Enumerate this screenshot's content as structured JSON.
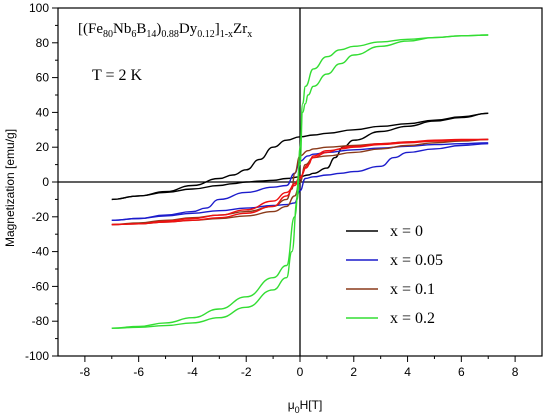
{
  "chart_data": {
    "type": "line",
    "title": "",
    "xlabel": {
      "main": "μ",
      "sub": "0",
      "rest": "H[T]"
    },
    "ylabel": "Magnetization [emu/g]",
    "xlim": [
      -9,
      9
    ],
    "ylim": [
      -100,
      100
    ],
    "xticks": [
      -8,
      -6,
      -4,
      -2,
      0,
      2,
      4,
      6,
      8
    ],
    "yticks": [
      -100,
      -80,
      -60,
      -40,
      -20,
      0,
      20,
      40,
      60,
      80,
      100
    ],
    "grid": false,
    "legend_position": "bottom-right",
    "annotation_formula": [
      {
        "t": "[(Fe",
        "s": "n"
      },
      {
        "t": "80",
        "s": "sub"
      },
      {
        "t": "Nb",
        "s": "n"
      },
      {
        "t": "6",
        "s": "sub"
      },
      {
        "t": "B",
        "s": "n"
      },
      {
        "t": "14",
        "s": "sub"
      },
      {
        "t": ")",
        "s": "n"
      },
      {
        "t": "0.88",
        "s": "sub"
      },
      {
        "t": "Dy",
        "s": "n"
      },
      {
        "t": "0.12",
        "s": "sub"
      },
      {
        "t": "]",
        "s": "n"
      },
      {
        "t": "1-x",
        "s": "sub"
      },
      {
        "t": "Zr",
        "s": "n"
      },
      {
        "t": "x",
        "s": "sub"
      }
    ],
    "annotation_temperature": "T = 2 K",
    "series": [
      {
        "name": "x = 0",
        "color": "#000000",
        "upper": [
          [
            -7,
            -10
          ],
          [
            -6,
            -8
          ],
          [
            -5,
            -6
          ],
          [
            -4,
            -4
          ],
          [
            -3,
            -2
          ],
          [
            -2.5,
            -1
          ],
          [
            -2,
            0
          ],
          [
            -1.5,
            0.5
          ],
          [
            -1,
            1
          ],
          [
            -0.5,
            2
          ],
          [
            0,
            3
          ],
          [
            0.3,
            4
          ],
          [
            0.5,
            5
          ],
          [
            1,
            8
          ],
          [
            1.3,
            14
          ],
          [
            1.6,
            20
          ],
          [
            2,
            24
          ],
          [
            3,
            29
          ],
          [
            4,
            32
          ],
          [
            5,
            35
          ],
          [
            6,
            37
          ],
          [
            7,
            39.5
          ]
        ],
        "lower": [
          [
            -7,
            -10
          ],
          [
            -6,
            -8
          ],
          [
            -5,
            -5.5
          ],
          [
            -4,
            -2
          ],
          [
            -3,
            2
          ],
          [
            -2.5,
            4
          ],
          [
            -2,
            7
          ],
          [
            -1.5,
            13
          ],
          [
            -1,
            20
          ],
          [
            -0.5,
            24
          ],
          [
            0,
            26
          ],
          [
            0.5,
            27
          ],
          [
            1,
            28
          ],
          [
            2,
            30
          ],
          [
            3,
            32
          ],
          [
            4,
            33.5
          ],
          [
            5,
            35.5
          ],
          [
            6,
            37.5
          ],
          [
            7,
            39.5
          ]
        ]
      },
      {
        "name": "x = 0.05",
        "color": "#1c1ccc",
        "upper": [
          [
            -7,
            -22
          ],
          [
            -6,
            -21
          ],
          [
            -5,
            -19.5
          ],
          [
            -4,
            -18
          ],
          [
            -3,
            -16.5
          ],
          [
            -2,
            -15
          ],
          [
            -1,
            -13.5
          ],
          [
            -0.5,
            -13
          ],
          [
            -0.2,
            -12
          ],
          [
            0,
            -5
          ],
          [
            0.2,
            2
          ],
          [
            0.5,
            3
          ],
          [
            1,
            4
          ],
          [
            1.5,
            5
          ],
          [
            2,
            6
          ],
          [
            3,
            9
          ],
          [
            3.5,
            14
          ],
          [
            4,
            17
          ],
          [
            5,
            19
          ],
          [
            6,
            21
          ],
          [
            7,
            22
          ]
        ],
        "lower": [
          [
            -7,
            -22
          ],
          [
            -6,
            -21
          ],
          [
            -5,
            -19
          ],
          [
            -4,
            -17
          ],
          [
            -3.5,
            -15
          ],
          [
            -3,
            -10
          ],
          [
            -2,
            -6
          ],
          [
            -1,
            -3
          ],
          [
            -0.5,
            -2
          ],
          [
            -0.2,
            5
          ],
          [
            0,
            12
          ],
          [
            0.3,
            15
          ],
          [
            0.5,
            16
          ],
          [
            1,
            17
          ],
          [
            2,
            18.5
          ],
          [
            3,
            19.5
          ],
          [
            4,
            20.5
          ],
          [
            5,
            21.5
          ],
          [
            6,
            22
          ],
          [
            7,
            22.5
          ]
        ]
      },
      {
        "name": "x = 0.1",
        "color": "#8a3a1a",
        "upper": [
          [
            -7,
            -24.5
          ],
          [
            -6,
            -24
          ],
          [
            -5,
            -23
          ],
          [
            -4,
            -22
          ],
          [
            -3,
            -21
          ],
          [
            -2,
            -19.5
          ],
          [
            -1,
            -17
          ],
          [
            -0.5,
            -14
          ],
          [
            -0.2,
            -8
          ],
          [
            0,
            0
          ],
          [
            0.2,
            10
          ],
          [
            0.5,
            14
          ],
          [
            1,
            15
          ],
          [
            2,
            17
          ],
          [
            3,
            19
          ],
          [
            4,
            21
          ],
          [
            5,
            22.5
          ],
          [
            6,
            23.5
          ],
          [
            7,
            24.5
          ]
        ],
        "lower": [
          [
            -7,
            -24.5
          ],
          [
            -6,
            -23.5
          ],
          [
            -5,
            -22
          ],
          [
            -4,
            -20.5
          ],
          [
            -3,
            -19
          ],
          [
            -2,
            -17
          ],
          [
            -1,
            -14
          ],
          [
            -0.5,
            -10
          ],
          [
            -0.3,
            -4
          ],
          [
            -0.2,
            5
          ],
          [
            0,
            15
          ],
          [
            0.3,
            18
          ],
          [
            0.5,
            19
          ],
          [
            1,
            20
          ],
          [
            2,
            21
          ],
          [
            3,
            22
          ],
          [
            4,
            23
          ],
          [
            5,
            23.5
          ],
          [
            6,
            24
          ],
          [
            7,
            24.5
          ]
        ]
      },
      {
        "name": "x = 0.1",
        "color": "#ee1111",
        "legend": false,
        "upper": [
          [
            -7,
            -24.5
          ],
          [
            -6,
            -24
          ],
          [
            -5,
            -22.5
          ],
          [
            -4,
            -21
          ],
          [
            -3,
            -19
          ],
          [
            -2,
            -16
          ],
          [
            -1,
            -11
          ],
          [
            -0.5,
            -6
          ],
          [
            -0.2,
            -2
          ],
          [
            0,
            2
          ],
          [
            0.2,
            8
          ],
          [
            0.5,
            14
          ],
          [
            1,
            17
          ],
          [
            1.5,
            19
          ],
          [
            2,
            20
          ],
          [
            3,
            21.5
          ],
          [
            4,
            22.5
          ],
          [
            5,
            23.5
          ],
          [
            6,
            24
          ],
          [
            7,
            24.5
          ]
        ],
        "lower": [
          [
            -7,
            -24.5
          ],
          [
            -6,
            -24
          ],
          [
            -5,
            -23
          ],
          [
            -4,
            -22
          ],
          [
            -3,
            -20.5
          ],
          [
            -2,
            -18
          ],
          [
            -1,
            -14
          ],
          [
            -0.5,
            -8
          ],
          [
            -0.2,
            -1
          ],
          [
            0,
            3
          ],
          [
            0.3,
            10
          ],
          [
            0.5,
            15
          ],
          [
            1,
            18
          ],
          [
            2,
            20.5
          ],
          [
            3,
            22
          ],
          [
            4,
            23
          ],
          [
            5,
            24
          ],
          [
            6,
            24.5
          ],
          [
            7,
            24.5
          ]
        ]
      },
      {
        "name": "x = 0.2",
        "color": "#33dd33",
        "upper": [
          [
            -7,
            -84
          ],
          [
            -6,
            -83
          ],
          [
            -5,
            -81
          ],
          [
            -4,
            -78
          ],
          [
            -3,
            -73
          ],
          [
            -2,
            -66
          ],
          [
            -1,
            -55
          ],
          [
            -0.5,
            -48
          ],
          [
            -0.2,
            -20
          ],
          [
            0,
            10
          ],
          [
            0.1,
            40
          ],
          [
            0.2,
            45
          ],
          [
            0.3,
            50
          ],
          [
            0.5,
            55
          ],
          [
            1,
            62
          ],
          [
            1.5,
            68
          ],
          [
            2,
            73
          ],
          [
            3,
            78
          ],
          [
            4,
            81
          ],
          [
            5,
            83
          ],
          [
            6,
            84
          ],
          [
            7,
            84.5
          ]
        ],
        "lower": [
          [
            -7,
            -84
          ],
          [
            -6,
            -83.5
          ],
          [
            -5,
            -82.5
          ],
          [
            -4,
            -81
          ],
          [
            -3,
            -78
          ],
          [
            -2,
            -72
          ],
          [
            -1,
            -62
          ],
          [
            -0.5,
            -55
          ],
          [
            -0.3,
            -40
          ],
          [
            -0.1,
            -10
          ],
          [
            0,
            20
          ],
          [
            0.1,
            45
          ],
          [
            0.2,
            55
          ],
          [
            0.5,
            65
          ],
          [
            1,
            72
          ],
          [
            1.5,
            76
          ],
          [
            2,
            78
          ],
          [
            3,
            80.5
          ],
          [
            4,
            82
          ],
          [
            5,
            83
          ],
          [
            6,
            84
          ],
          [
            7,
            84.5
          ]
        ]
      }
    ]
  }
}
